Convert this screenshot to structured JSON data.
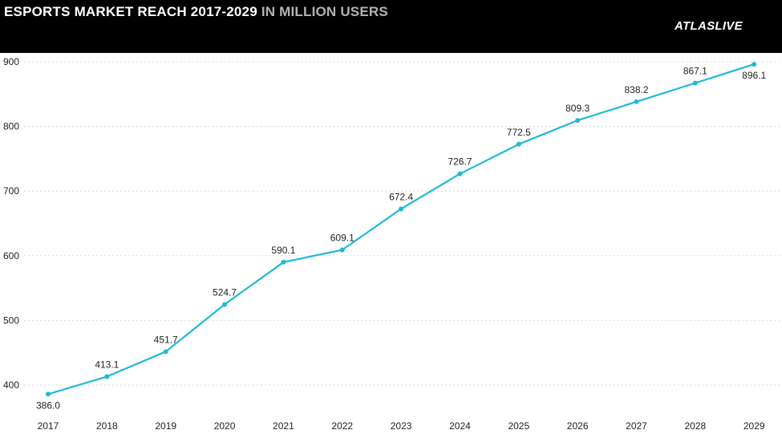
{
  "header": {
    "title_main": "ESPORTS MARKET REACH 2017-2029",
    "title_sub": "IN MILLION USERS",
    "logo_text": "ATLASLIVE"
  },
  "colors": {
    "header_background": "#000000",
    "title_main": "#ffffff",
    "title_sub": "#b3b3b3",
    "line": "#1fbad6",
    "gridline": "#d9d9d9"
  },
  "chart_data": {
    "type": "line",
    "title": "ESPORTS MARKET REACH 2017-2029 IN MILLION USERS",
    "categories": [
      "2017",
      "2018",
      "2019",
      "2020",
      "2021",
      "2022",
      "2023",
      "2024",
      "2025",
      "2026",
      "2027",
      "2028",
      "2029"
    ],
    "values": [
      386.0,
      413.1,
      451.7,
      524.7,
      590.1,
      609.1,
      672.4,
      726.7,
      772.5,
      809.3,
      838.2,
      867.1,
      896.1
    ],
    "data_labels": [
      "386.0",
      "413.1",
      "451.7",
      "524.7",
      "590.1",
      "609.1",
      "672.4",
      "726.7",
      "772.5",
      "809.3",
      "838.2",
      "867.1",
      "896.1"
    ],
    "yticks": [
      400,
      500,
      600,
      700,
      800,
      900
    ],
    "ylim": [
      360,
      912
    ],
    "grid": true,
    "legend": "none",
    "xlabel": "",
    "ylabel": ""
  }
}
